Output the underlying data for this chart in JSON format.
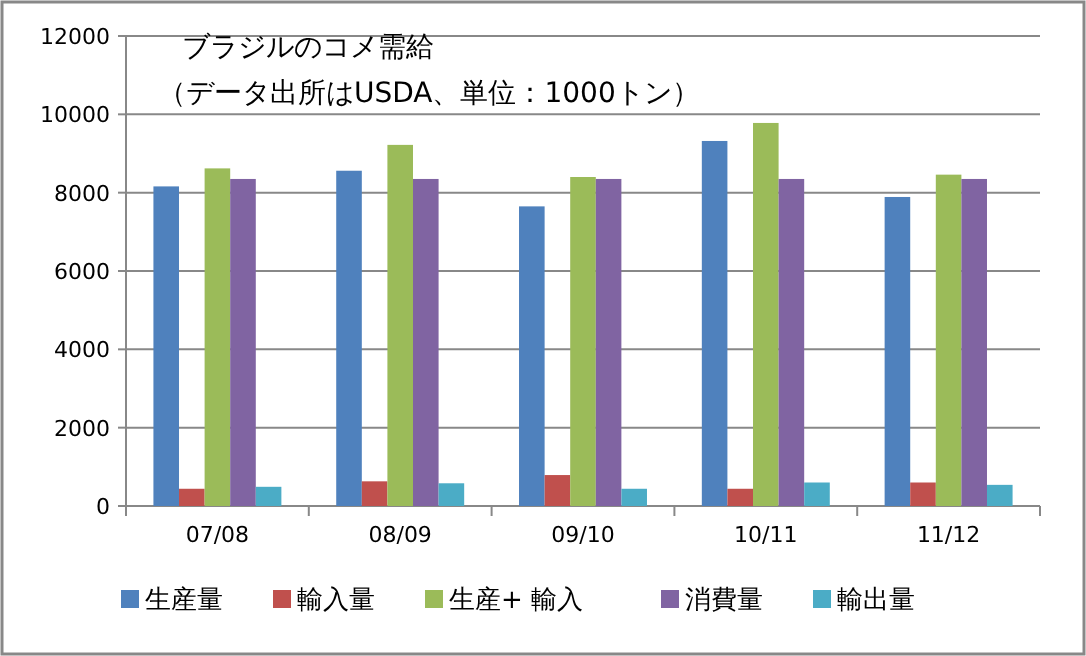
{
  "chart_data": {
    "type": "bar",
    "title": "ブラジルのコメ需給",
    "subtitle": "（データ出所はUSDA、単位：1000トン）",
    "categories": [
      "07/08",
      "08/09",
      "09/10",
      "10/11",
      "11/12"
    ],
    "series": [
      {
        "name": "生産量",
        "color": "#4f81bd",
        "values": [
          8160,
          8560,
          7650,
          9320,
          7890
        ]
      },
      {
        "name": "輸入量",
        "color": "#c0504d",
        "values": [
          440,
          630,
          790,
          440,
          600
        ]
      },
      {
        "name": "生産+ 輸入",
        "color": "#9bbb59",
        "values": [
          8620,
          9220,
          8400,
          9780,
          8460
        ]
      },
      {
        "name": "消費量",
        "color": "#8064a2",
        "values": [
          8350,
          8350,
          8350,
          8350,
          8350
        ]
      },
      {
        "name": "輸出量",
        "color": "#4bacc6",
        "values": [
          490,
          580,
          440,
          600,
          540
        ]
      }
    ],
    "ylim": [
      0,
      12000
    ],
    "yticks": [
      0,
      2000,
      4000,
      6000,
      8000,
      10000,
      12000
    ],
    "grid": "y",
    "legend": "bottom"
  }
}
